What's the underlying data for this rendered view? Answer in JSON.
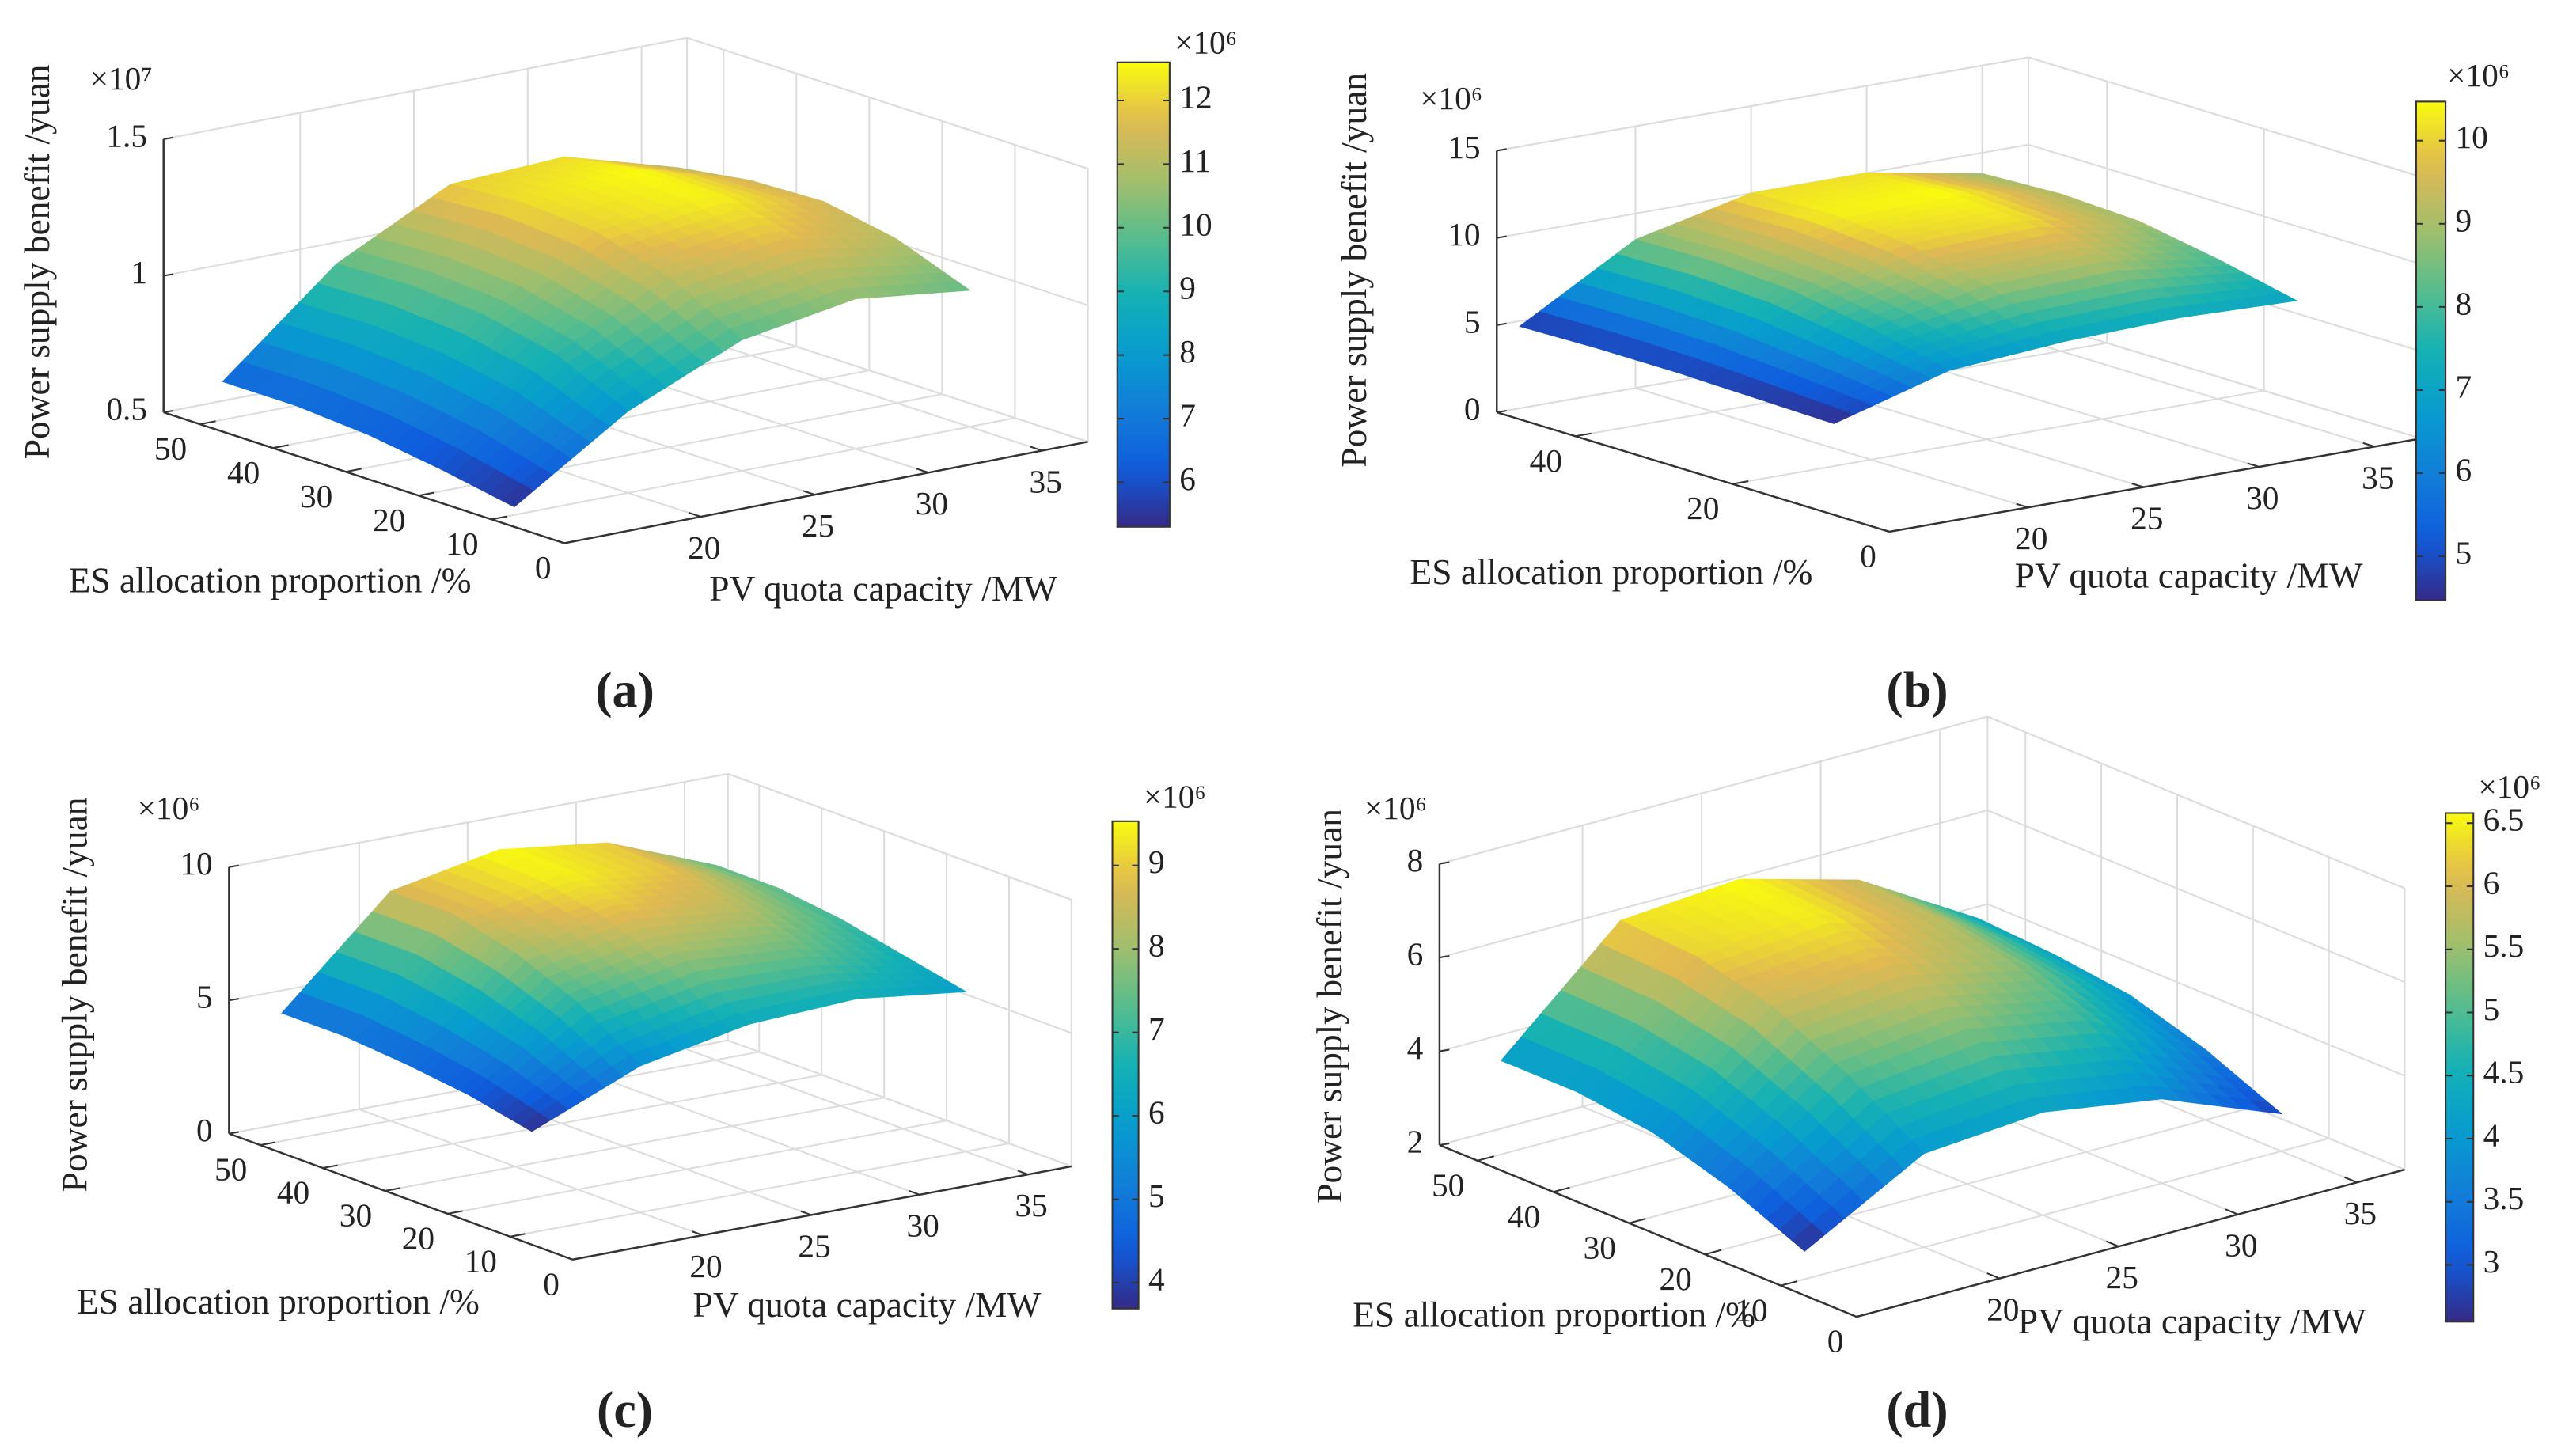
{
  "chart_data": [
    {
      "type": "surface",
      "panel": "(a)",
      "zlabel": "Power supply benefit /yuan",
      "ylabel": "ES allocation proportion /%",
      "xlabel": "PV quota capacity /MW",
      "z_exponent": "×10⁷",
      "x": [
        15,
        20,
        25,
        30,
        35
      ],
      "y": [
        10,
        20,
        30,
        40,
        50
      ],
      "z": [
        [
          0.53,
          0.8,
          0.98,
          1.05,
          1.0
        ],
        [
          0.58,
          0.92,
          1.12,
          1.18,
          1.1
        ],
        [
          0.62,
          0.98,
          1.2,
          1.25,
          1.15
        ],
        [
          0.64,
          1.0,
          1.22,
          1.26,
          1.14
        ],
        [
          0.64,
          0.99,
          1.2,
          1.22,
          1.1
        ]
      ],
      "xlim": [
        14,
        37
      ],
      "xticks": [
        20,
        25,
        30,
        35
      ],
      "ylim": [
        0,
        55
      ],
      "yticks": [
        0,
        10,
        20,
        30,
        40,
        50
      ],
      "zlim": [
        0.5,
        1.5
      ],
      "zticks": [
        0.5,
        1,
        1.5
      ],
      "grid": true,
      "colorbar": {
        "exponent": "×10⁶",
        "lim": [
          5.3,
          12.6
        ],
        "ticks": [
          6,
          7,
          8,
          9,
          10,
          11,
          12
        ]
      }
    },
    {
      "type": "surface",
      "panel": "(b)",
      "zlabel": "Power supply benefit /yuan",
      "ylabel": "ES allocation proportion /%",
      "xlabel": "PV quota capacity /MW",
      "z_exponent": "×10⁶",
      "x": [
        15,
        20,
        25,
        30,
        35
      ],
      "y": [
        10,
        20,
        30,
        40,
        50
      ],
      "z": [
        [
          4.6,
          6.5,
          7.0,
          7.2,
          7.0
        ],
        [
          4.7,
          7.5,
          8.8,
          9.0,
          8.0
        ],
        [
          4.8,
          8.3,
          9.8,
          10.0,
          8.8
        ],
        [
          4.8,
          8.6,
          10.2,
          10.3,
          9.0
        ],
        [
          4.7,
          8.5,
          10.0,
          10.0,
          8.8
        ]
      ],
      "xlim": [
        14,
        37
      ],
      "xticks": [
        20,
        25,
        30,
        35
      ],
      "ylim": [
        0,
        50
      ],
      "yticks": [
        0,
        20,
        40
      ],
      "zlim": [
        0,
        15
      ],
      "zticks": [
        0,
        5,
        10,
        15
      ],
      "grid": true,
      "colorbar": {
        "exponent": "×10⁶",
        "lim": [
          4.47,
          10.47
        ],
        "ticks": [
          5,
          6,
          7,
          8,
          9,
          10
        ]
      }
    },
    {
      "type": "surface",
      "panel": "(c)",
      "zlabel": "Power supply benefit /yuan",
      "ylabel": "ES allocation proportion /%",
      "xlabel": "PV quota capacity /MW",
      "z_exponent": "×10⁶",
      "x": [
        15,
        20,
        25,
        30,
        35
      ],
      "y": [
        10,
        20,
        30,
        40,
        50
      ],
      "z": [
        [
          3.8,
          5.5,
          6.3,
          6.5,
          6.0
        ],
        [
          4.3,
          7.0,
          7.8,
          7.5,
          6.5
        ],
        [
          4.6,
          8.0,
          8.8,
          8.3,
          7.0
        ],
        [
          4.8,
          8.6,
          9.3,
          8.8,
          7.3
        ],
        [
          4.8,
          8.6,
          9.4,
          8.9,
          7.3
        ]
      ],
      "xlim": [
        14,
        37
      ],
      "xticks": [
        20,
        25,
        30,
        35
      ],
      "ylim": [
        0,
        55
      ],
      "yticks": [
        0,
        10,
        20,
        30,
        40,
        50
      ],
      "zlim": [
        0,
        10
      ],
      "zticks": [
        0,
        5,
        10
      ],
      "grid": true,
      "colorbar": {
        "exponent": "×10⁶",
        "lim": [
          3.69,
          9.53
        ],
        "ticks": [
          4,
          5,
          6,
          7,
          8,
          9
        ]
      }
    },
    {
      "type": "surface",
      "panel": "(d)",
      "zlabel": "Power supply benefit /yuan",
      "ylabel": "ES allocation proportion /%",
      "xlabel": "PV quota capacity /MW",
      "z_exponent": "×10⁶",
      "x": [
        15,
        20,
        25,
        30,
        35
      ],
      "y": [
        10,
        20,
        30,
        40,
        50
      ],
      "z": [
        [
          2.6,
          4.0,
          4.2,
          3.8,
          2.8
        ],
        [
          3.3,
          5.0,
          5.3,
          4.8,
          3.5
        ],
        [
          3.8,
          5.8,
          6.0,
          5.4,
          4.0
        ],
        [
          4.0,
          6.2,
          6.4,
          5.7,
          4.2
        ],
        [
          4.0,
          6.3,
          6.5,
          5.8,
          4.3
        ]
      ],
      "xlim": [
        14,
        37
      ],
      "xticks": [
        20,
        25,
        30,
        35
      ],
      "ylim": [
        0,
        55
      ],
      "yticks": [
        0,
        10,
        20,
        30,
        40,
        50
      ],
      "zlim": [
        2,
        8
      ],
      "zticks": [
        2,
        4,
        6,
        8
      ],
      "grid": true,
      "colorbar": {
        "exponent": "×10⁶",
        "lim": [
          2.55,
          6.58
        ],
        "ticks": [
          3,
          3.5,
          4,
          4.5,
          5,
          5.5,
          6,
          6.5
        ]
      }
    }
  ]
}
